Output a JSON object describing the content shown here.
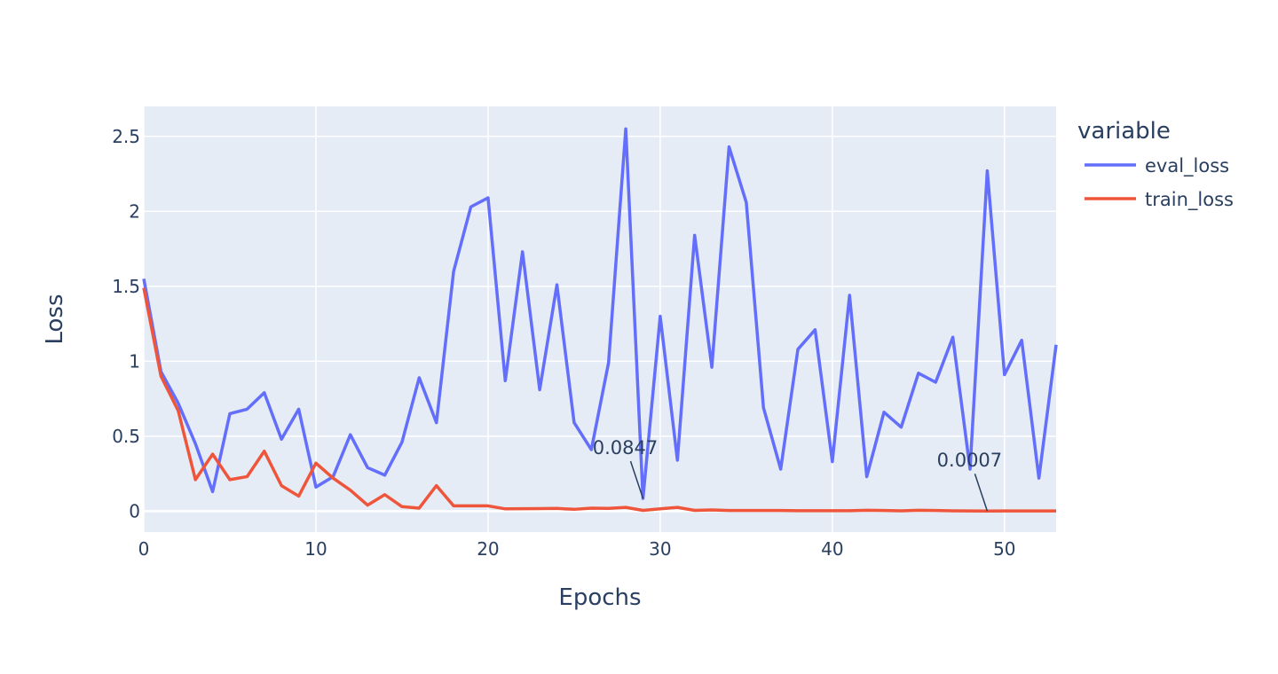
{
  "chart_data": {
    "type": "line",
    "xlabel": "Epochs",
    "ylabel": "Loss",
    "xlim": [
      0,
      53
    ],
    "ylim": [
      -0.14,
      2.7
    ],
    "x_ticks": [
      0,
      10,
      20,
      30,
      40,
      50
    ],
    "y_ticks": [
      0,
      0.5,
      1,
      1.5,
      2,
      2.5
    ],
    "x_tick_labels": [
      "0",
      "10",
      "20",
      "30",
      "40",
      "50"
    ],
    "y_tick_labels": [
      "0",
      "0.5",
      "1",
      "1.5",
      "2",
      "2.5"
    ],
    "grid": true,
    "plot_background": "#e5ecf6",
    "legend": {
      "title": "variable",
      "position": "right"
    },
    "x": [
      0,
      1,
      2,
      3,
      4,
      5,
      6,
      7,
      8,
      9,
      10,
      11,
      12,
      13,
      14,
      15,
      16,
      17,
      18,
      19,
      20,
      21,
      22,
      23,
      24,
      25,
      26,
      27,
      28,
      29,
      30,
      31,
      32,
      33,
      34,
      35,
      36,
      37,
      38,
      39,
      40,
      41,
      42,
      43,
      44,
      45,
      46,
      47,
      48,
      49,
      50,
      51,
      52,
      53
    ],
    "series": [
      {
        "name": "eval_loss",
        "color": "#636efa",
        "values": [
          1.55,
          0.93,
          0.72,
          0.45,
          0.13,
          0.65,
          0.68,
          0.79,
          0.48,
          0.68,
          0.16,
          0.23,
          0.51,
          0.29,
          0.24,
          0.46,
          0.89,
          0.59,
          1.6,
          2.03,
          2.09,
          0.87,
          1.73,
          0.81,
          1.51,
          0.59,
          0.41,
          0.99,
          2.55,
          0.0847,
          1.3,
          0.34,
          1.84,
          0.96,
          2.43,
          2.06,
          0.69,
          0.28,
          1.08,
          1.21,
          0.33,
          1.44,
          0.23,
          0.66,
          0.56,
          0.92,
          0.86,
          1.16,
          0.28,
          2.27,
          0.91,
          1.14,
          0.22,
          1.11
        ]
      },
      {
        "name": "train_loss",
        "color": "#ef553b",
        "values": [
          1.49,
          0.9,
          0.67,
          0.21,
          0.38,
          0.21,
          0.23,
          0.4,
          0.17,
          0.1,
          0.32,
          0.22,
          0.14,
          0.04,
          0.11,
          0.03,
          0.02,
          0.17,
          0.035,
          0.035,
          0.035,
          0.015,
          0.016,
          0.017,
          0.018,
          0.012,
          0.02,
          0.018,
          0.025,
          0.005,
          0.015,
          0.025,
          0.005,
          0.008,
          0.004,
          0.004,
          0.004,
          0.004,
          0.003,
          0.003,
          0.003,
          0.003,
          0.006,
          0.004,
          0.002,
          0.006,
          0.004,
          0.002,
          0.001,
          0.0007,
          0.001,
          0.001,
          0.001,
          0.001
        ]
      }
    ],
    "annotations": [
      {
        "x": 29,
        "y": 0.0847,
        "text": "0.0847"
      },
      {
        "x": 49,
        "y": 0.0007,
        "text": "0.0007"
      }
    ]
  }
}
